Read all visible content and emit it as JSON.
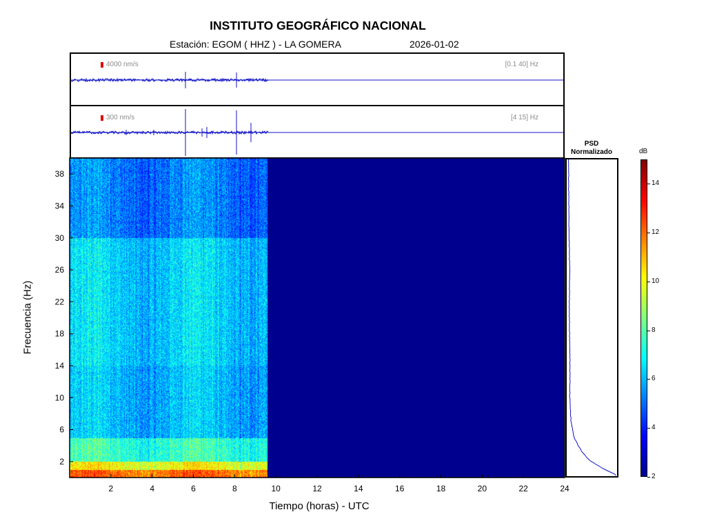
{
  "header": {
    "title": "INSTITUTO GEOGRÁFICO NACIONAL",
    "station": "Estación:  EGOM ( HHZ ) - LA GOMERA",
    "date": "2026-01-02"
  },
  "traces": [
    {
      "scale": "4000 nm/s",
      "band": "[0.1 40] Hz"
    },
    {
      "scale": "300 nm/s",
      "band": "[4 15] Hz"
    }
  ],
  "psd": {
    "title_line1": "PSD",
    "title_line2": "Normalizado"
  },
  "colorbar": {
    "unit": "dB",
    "min": 2,
    "max": 15,
    "ticks": [
      "2",
      "4",
      "6",
      "8",
      "10",
      "12",
      "14"
    ],
    "colormap": "jet"
  },
  "chart_data": {
    "type": "heatmap",
    "title": "INSTITUTO GEOGRÁFICO NACIONAL",
    "xlabel": "Tiempo (horas) - UTC",
    "ylabel": "Frecuencia  (Hz)",
    "xlim": [
      0,
      24
    ],
    "ylim": [
      0,
      40
    ],
    "x_ticks": [
      "2",
      "4",
      "6",
      "8",
      "10",
      "12",
      "14",
      "16",
      "18",
      "20",
      "22",
      "24"
    ],
    "y_ticks": [
      "2",
      "6",
      "10",
      "14",
      "18",
      "22",
      "26",
      "30",
      "34",
      "38"
    ],
    "data_end_hour": 9.6,
    "spectrogram_levels_db": [
      {
        "f_min": 0,
        "f_max": 1,
        "level": 12
      },
      {
        "f_min": 1,
        "f_max": 2,
        "level": 10
      },
      {
        "f_min": 2,
        "f_max": 5,
        "level": 7.5
      },
      {
        "f_min": 5,
        "f_max": 14,
        "level": 6
      },
      {
        "f_min": 14,
        "f_max": 30,
        "level": 6.3
      },
      {
        "f_min": 30,
        "f_max": 40,
        "level": 5.2
      }
    ],
    "empty_level_db": 2,
    "psd_profile": [
      {
        "f": 0.2,
        "v": 1.0
      },
      {
        "f": 1,
        "v": 0.72
      },
      {
        "f": 2,
        "v": 0.45
      },
      {
        "f": 3,
        "v": 0.3
      },
      {
        "f": 4,
        "v": 0.2
      },
      {
        "f": 5,
        "v": 0.12
      },
      {
        "f": 7,
        "v": 0.06
      },
      {
        "f": 10,
        "v": 0.035
      },
      {
        "f": 14,
        "v": 0.04
      },
      {
        "f": 18,
        "v": 0.03
      },
      {
        "f": 22,
        "v": 0.025
      },
      {
        "f": 26,
        "v": 0.035
      },
      {
        "f": 30,
        "v": 0.02
      },
      {
        "f": 34,
        "v": 0.015
      },
      {
        "f": 38,
        "v": 0.01
      },
      {
        "f": 40,
        "v": 0.01
      }
    ]
  }
}
